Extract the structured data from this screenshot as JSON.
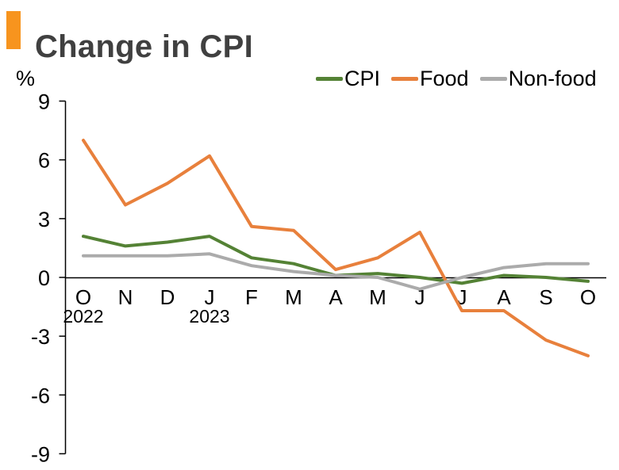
{
  "header": {
    "title": "Change in CPI"
  },
  "colors": {
    "accent_orange": "#F7941E",
    "title_text": "#404040",
    "axis_line": "#000000",
    "axis_text": "#000000",
    "cpi_green": "#548235",
    "food_orange": "#E8803C",
    "nonfood_gray": "#ABABAB"
  },
  "chart_data": {
    "type": "line",
    "title": "Change in CPI",
    "ylabel": "%",
    "xlabel": "",
    "x_categories": [
      "O",
      "N",
      "D",
      "J",
      "F",
      "M",
      "A",
      "M",
      "J",
      "J",
      "A",
      "S",
      "O"
    ],
    "x_year_labels": [
      {
        "index": 0,
        "label": "2022"
      },
      {
        "index": 3,
        "label": "2023"
      }
    ],
    "series": [
      {
        "name": "CPI",
        "color": "#548235",
        "values": [
          2.1,
          1.6,
          1.8,
          2.1,
          1.0,
          0.7,
          0.1,
          0.2,
          0.0,
          -0.3,
          0.1,
          0.0,
          -0.2
        ]
      },
      {
        "name": "Food",
        "color": "#E8803C",
        "values": [
          7.0,
          3.7,
          4.8,
          6.2,
          2.6,
          2.4,
          0.4,
          1.0,
          2.3,
          -1.7,
          -1.7,
          -3.2,
          -4.0
        ]
      },
      {
        "name": "Non-food",
        "color": "#ABABAB",
        "values": [
          1.1,
          1.1,
          1.1,
          1.2,
          0.6,
          0.3,
          0.1,
          0.0,
          -0.6,
          0.0,
          0.5,
          0.7,
          0.7
        ]
      }
    ],
    "yticks": [
      9,
      6,
      3,
      0,
      -3,
      -6,
      -9
    ],
    "ylim": [
      -9,
      9
    ],
    "grid": false,
    "legend_position": "top-right",
    "legend": [
      "CPI",
      "Food",
      "Non-food"
    ]
  }
}
